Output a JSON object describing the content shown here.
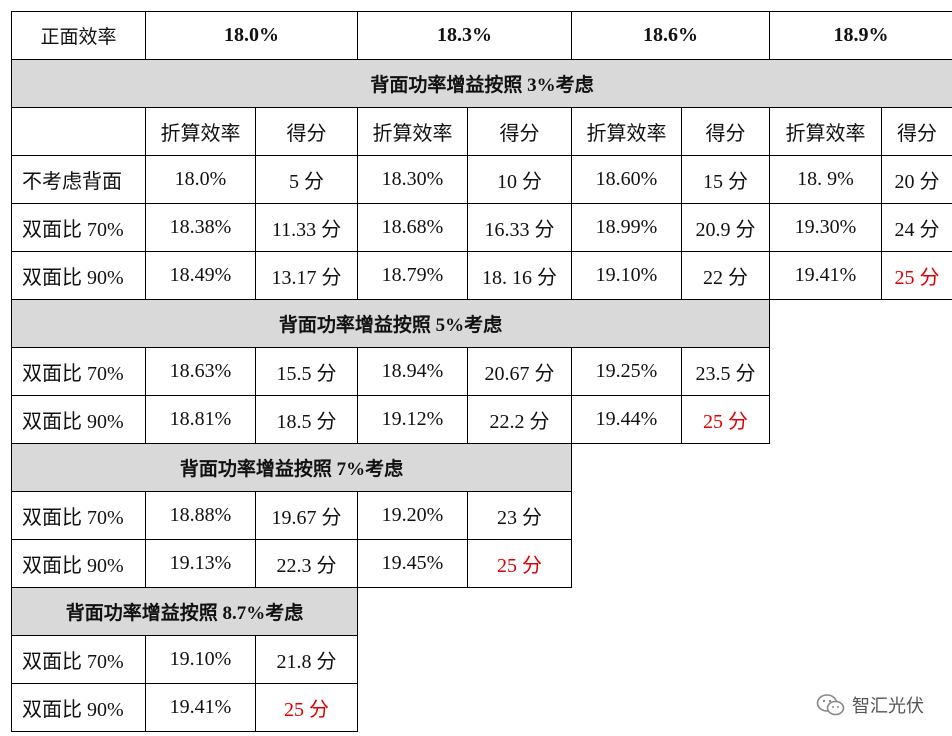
{
  "header": {
    "label": "正面效率",
    "efficiencies": [
      "18.0%",
      "18.3%",
      "18.6%",
      "18.9%"
    ]
  },
  "subheader": {
    "col_a": "折算效率",
    "col_b": "得分"
  },
  "sections": [
    {
      "title": "背面功率增益按照 3%考虑",
      "rows": [
        {
          "label": "不考虑背面",
          "cells": [
            [
              "18.0%",
              "5 分"
            ],
            [
              "18.30%",
              "10 分"
            ],
            [
              "18.60%",
              "15 分"
            ],
            [
              "18. 9%",
              "20 分"
            ]
          ]
        },
        {
          "label": "双面比 70%",
          "cells": [
            [
              "18.38%",
              "11.33 分"
            ],
            [
              "18.68%",
              "16.33 分"
            ],
            [
              "18.99%",
              "20.9 分"
            ],
            [
              "19.30%",
              "24 分"
            ]
          ]
        },
        {
          "label": "双面比 90%",
          "cells": [
            [
              "18.49%",
              "13.17 分"
            ],
            [
              "18.79%",
              "18. 16 分"
            ],
            [
              "19.10%",
              "22 分"
            ],
            [
              "19.41%",
              "25 分"
            ]
          ]
        }
      ]
    },
    {
      "title": "背面功率增益按照 5%考虑",
      "rows": [
        {
          "label": "双面比 70%",
          "cells": [
            [
              "18.63%",
              "15.5 分"
            ],
            [
              "18.94%",
              "20.67 分"
            ],
            [
              "19.25%",
              "23.5 分"
            ]
          ]
        },
        {
          "label": "双面比 90%",
          "cells": [
            [
              "18.81%",
              "18.5 分"
            ],
            [
              "19.12%",
              "22.2 分"
            ],
            [
              "19.44%",
              "25 分"
            ]
          ]
        }
      ]
    },
    {
      "title": "背面功率增益按照 7%考虑",
      "rows": [
        {
          "label": "双面比 70%",
          "cells": [
            [
              "18.88%",
              "19.67 分"
            ],
            [
              "19.20%",
              "23 分"
            ]
          ]
        },
        {
          "label": "双面比 90%",
          "cells": [
            [
              "19.13%",
              "22.3 分"
            ],
            [
              "19.45%",
              "25 分"
            ]
          ]
        }
      ]
    },
    {
      "title": "背面功率增益按照 8.7%考虑",
      "rows": [
        {
          "label": "双面比 70%",
          "cells": [
            [
              "19.10%",
              "21.8 分"
            ]
          ]
        },
        {
          "label": "双面比 90%",
          "cells": [
            [
              "19.41%",
              "25 分"
            ]
          ]
        }
      ]
    }
  ],
  "highlight_color": "#e00000",
  "watermark": {
    "icon": "wechat-icon",
    "text": "智汇光伏"
  }
}
